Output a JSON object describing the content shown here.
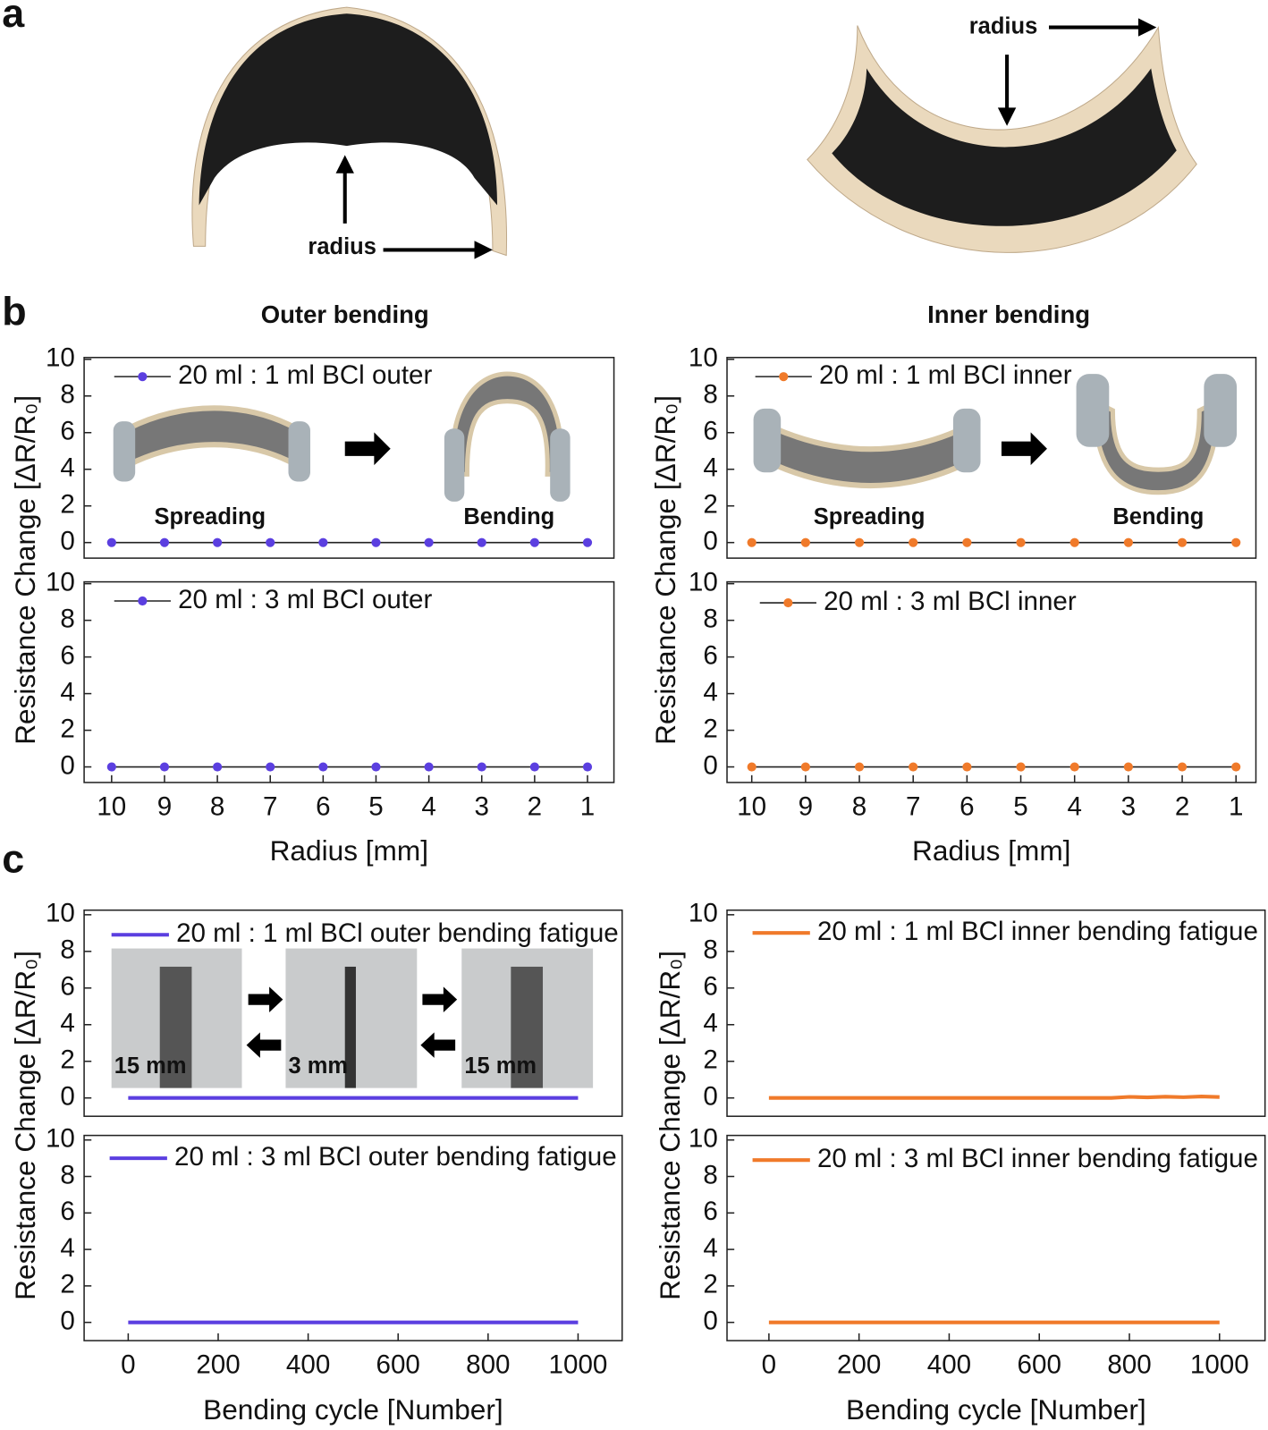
{
  "figure": {
    "panel_labels": [
      "a",
      "b",
      "c"
    ],
    "radius_labels": [
      "radius",
      "radius"
    ]
  },
  "chart_data": [
    {
      "type": "line",
      "title": "Outer bending",
      "ylabel": "Resistance Change [ΔR/R₀]",
      "x": [
        10,
        9,
        8,
        7,
        6,
        5,
        4,
        3,
        2,
        1
      ],
      "series": [
        {
          "name": "20 ml : 1 ml BCl outer",
          "color": "#5b3fe0",
          "values": [
            0,
            0,
            0,
            0,
            0,
            0,
            0,
            0,
            0,
            0
          ]
        }
      ],
      "xlim": [
        10.52,
        0.5
      ],
      "ylim": [
        -0.85,
        10.1
      ],
      "yticks": [
        0,
        2,
        4,
        6,
        8,
        10
      ],
      "markers": true,
      "annotations": [
        "Spreading",
        "Bending"
      ]
    },
    {
      "type": "line",
      "xlabel": "Radius [mm]",
      "x": [
        10,
        9,
        8,
        7,
        6,
        5,
        4,
        3,
        2,
        1
      ],
      "series": [
        {
          "name": "20 ml : 3 ml BCl outer",
          "color": "#5b3fe0",
          "values": [
            0,
            0,
            0,
            0,
            0,
            0,
            0,
            0,
            0,
            0
          ]
        }
      ],
      "xlim": [
        10.52,
        0.5
      ],
      "ylim": [
        -0.85,
        10.1
      ],
      "yticks": [
        0,
        2,
        4,
        6,
        8,
        10
      ],
      "xticks": [
        10,
        9,
        8,
        7,
        6,
        5,
        4,
        3,
        2,
        1
      ],
      "markers": true
    },
    {
      "type": "line",
      "title": "Inner bending",
      "ylabel": "Resistance Change [ΔR/R₀]",
      "x": [
        10,
        9,
        8,
        7,
        6,
        5,
        4,
        3,
        2,
        1
      ],
      "series": [
        {
          "name": "20 ml : 1 ml BCl inner",
          "color": "#f07a2a",
          "values": [
            0,
            0,
            0,
            0,
            0,
            0,
            0,
            0,
            0,
            0
          ]
        }
      ],
      "xlim": [
        10.46,
        0.63
      ],
      "ylim": [
        -0.85,
        10.1
      ],
      "yticks": [
        0,
        2,
        4,
        6,
        8,
        10
      ],
      "markers": true,
      "annotations": [
        "Spreading",
        "Bending"
      ]
    },
    {
      "type": "line",
      "xlabel": "Radius [mm]",
      "x": [
        10,
        9,
        8,
        7,
        6,
        5,
        4,
        3,
        2,
        1
      ],
      "series": [
        {
          "name": "20 ml : 3 ml BCl inner",
          "color": "#f07a2a",
          "values": [
            0,
            0,
            0,
            0,
            0,
            0,
            0,
            0,
            0,
            0
          ]
        }
      ],
      "xlim": [
        10.46,
        0.63
      ],
      "ylim": [
        -0.85,
        10.1
      ],
      "yticks": [
        0,
        2,
        4,
        6,
        8,
        10
      ],
      "xticks": [
        10,
        9,
        8,
        7,
        6,
        5,
        4,
        3,
        2,
        1
      ],
      "markers": true
    },
    {
      "type": "line",
      "ylabel": "Resistance Change [ΔR/R₀]",
      "x": [
        0,
        1000
      ],
      "series": [
        {
          "name": "20 ml : 1 ml BCl outer bending fatigue",
          "color": "#5b3fe0",
          "values": [
            0,
            0
          ]
        }
      ],
      "xlim": [
        -98,
        1098
      ],
      "ylim": [
        -1,
        10.25
      ],
      "yticks": [
        0,
        2,
        4,
        6,
        8,
        10
      ],
      "markers": false,
      "annotations": [
        "15 mm",
        "3 mm",
        "15 mm"
      ]
    },
    {
      "type": "line",
      "xlabel": "Bending cycle [Number]",
      "x": [
        0,
        1000
      ],
      "series": [
        {
          "name": "20 ml : 3 ml BCl outer bending fatigue",
          "color": "#5b3fe0",
          "values": [
            0,
            0
          ]
        }
      ],
      "xlim": [
        -98,
        1098
      ],
      "ylim": [
        -1,
        10.25
      ],
      "yticks": [
        0,
        2,
        4,
        6,
        8,
        10
      ],
      "xticks": [
        0,
        200,
        400,
        600,
        800,
        1000
      ],
      "markers": false
    },
    {
      "type": "line",
      "ylabel": "Resistance Change [ΔR/R₀]",
      "x": [
        0,
        760,
        800,
        840,
        880,
        920,
        960,
        1000
      ],
      "series": [
        {
          "name": "20 ml : 1 ml BCl inner bending fatigue",
          "color": "#f07a2a",
          "values": [
            0,
            0,
            0.06,
            0.03,
            0.07,
            0.04,
            0.08,
            0.05
          ]
        }
      ],
      "xlim": [
        -93,
        1101
      ],
      "ylim": [
        -1,
        10.25
      ],
      "yticks": [
        0,
        2,
        4,
        6,
        8,
        10
      ],
      "markers": false
    },
    {
      "type": "line",
      "xlabel": "Bending cycle [Number]",
      "x": [
        0,
        1000
      ],
      "series": [
        {
          "name": "20 ml : 3 ml BCl inner bending fatigue",
          "color": "#f07a2a",
          "values": [
            0,
            0
          ]
        }
      ],
      "xlim": [
        -93,
        1101
      ],
      "ylim": [
        -1,
        10.25
      ],
      "yticks": [
        0,
        2,
        4,
        6,
        8,
        10
      ],
      "xticks": [
        0,
        200,
        400,
        600,
        800,
        1000
      ],
      "markers": false
    }
  ]
}
